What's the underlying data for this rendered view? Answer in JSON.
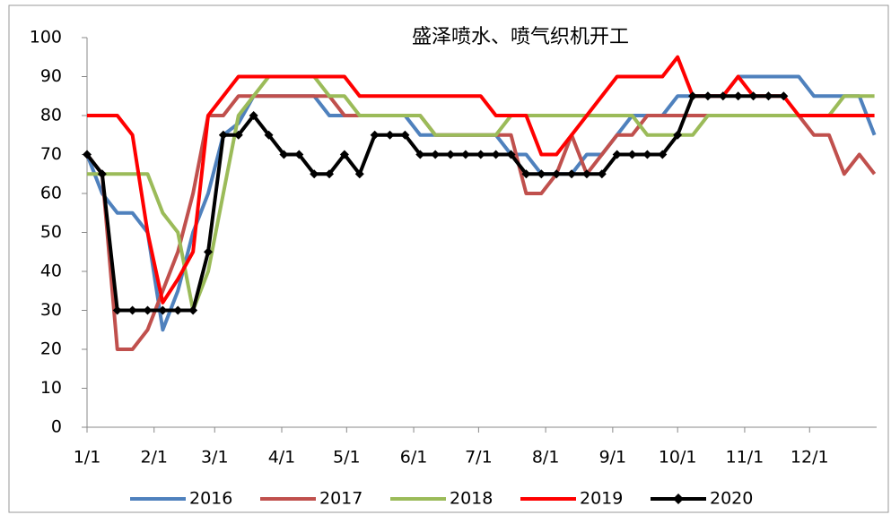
{
  "chart_data": {
    "type": "line",
    "title": "盛泽喷水、喷气织机开工",
    "x": [
      0,
      7,
      14,
      21,
      28,
      35,
      42,
      49,
      56,
      63,
      70,
      77,
      84,
      91,
      98,
      105,
      112,
      119,
      126,
      133,
      140,
      147,
      154,
      161,
      168,
      175,
      182,
      189,
      196,
      203,
      210,
      217,
      224,
      231,
      238,
      245,
      252,
      259,
      266,
      273,
      280,
      287,
      294,
      301,
      308,
      315,
      322,
      329,
      336,
      343,
      350,
      357,
      364
    ],
    "xlim": [
      0,
      365
    ],
    "xticks": [
      {
        "value": 0,
        "label": "1/1"
      },
      {
        "value": 31,
        "label": "2/1"
      },
      {
        "value": 59,
        "label": "3/1"
      },
      {
        "value": 90,
        "label": "4/1"
      },
      {
        "value": 120,
        "label": "5/1"
      },
      {
        "value": 151,
        "label": "6/1"
      },
      {
        "value": 181,
        "label": "7/1"
      },
      {
        "value": 212,
        "label": "8/1"
      },
      {
        "value": 243,
        "label": "9/1"
      },
      {
        "value": 273,
        "label": "10/1"
      },
      {
        "value": 304,
        "label": "11/1"
      },
      {
        "value": 334,
        "label": "12/1"
      }
    ],
    "ylim": [
      0,
      100
    ],
    "yticks": [
      0,
      10,
      20,
      30,
      40,
      50,
      60,
      70,
      80,
      90,
      100
    ],
    "grid": false,
    "legend": "bottom",
    "series": [
      {
        "name": "2016",
        "color": "#4f81bd",
        "values": [
          70,
          60,
          55,
          55,
          50,
          25,
          35,
          50,
          60,
          75,
          78,
          85,
          85,
          85,
          85,
          85,
          80,
          80,
          80,
          80,
          80,
          80,
          75,
          75,
          75,
          75,
          75,
          75,
          70,
          70,
          65,
          65,
          65,
          70,
          70,
          75,
          80,
          80,
          80,
          85,
          85,
          85,
          85,
          90,
          90,
          90,
          90,
          90,
          85,
          85,
          85,
          85,
          75
        ]
      },
      {
        "name": "2017",
        "color": "#c0504d",
        "values": [
          70,
          65,
          20,
          20,
          25,
          35,
          45,
          60,
          80,
          80,
          85,
          85,
          85,
          85,
          85,
          85,
          85,
          80,
          80,
          80,
          80,
          80,
          80,
          75,
          75,
          75,
          75,
          75,
          75,
          60,
          60,
          65,
          75,
          65,
          70,
          75,
          75,
          80,
          80,
          80,
          80,
          80,
          80,
          80,
          80,
          80,
          80,
          80,
          75,
          75,
          65,
          70,
          65
        ]
      },
      {
        "name": "2018",
        "color": "#9bbb59",
        "values": [
          65,
          65,
          65,
          65,
          65,
          55,
          50,
          30,
          40,
          60,
          80,
          85,
          90,
          90,
          90,
          90,
          85,
          85,
          80,
          80,
          80,
          80,
          80,
          75,
          75,
          75,
          75,
          75,
          80,
          80,
          80,
          80,
          80,
          80,
          80,
          80,
          80,
          75,
          75,
          75,
          75,
          80,
          80,
          80,
          80,
          80,
          80,
          80,
          80,
          80,
          85,
          85,
          85
        ]
      },
      {
        "name": "2019",
        "color": "#ff0000",
        "values": [
          80,
          80,
          80,
          75,
          50,
          32,
          38,
          45,
          80,
          85,
          90,
          90,
          90,
          90,
          90,
          90,
          90,
          90,
          85,
          85,
          85,
          85,
          85,
          85,
          85,
          85,
          85,
          80,
          80,
          80,
          70,
          70,
          75,
          80,
          85,
          90,
          90,
          90,
          90,
          95,
          85,
          85,
          85,
          90,
          85,
          85,
          85,
          80,
          80,
          80,
          80,
          80,
          80
        ]
      },
      {
        "name": "2020",
        "color": "#000000",
        "marker": "diamond",
        "values": [
          70,
          65,
          30,
          30,
          30,
          30,
          30,
          30,
          45,
          75,
          75,
          80,
          75,
          70,
          70,
          65,
          65,
          70,
          65,
          75,
          75,
          75,
          70,
          70,
          70,
          70,
          70,
          70,
          70,
          65,
          65,
          65,
          65,
          65,
          65,
          70,
          70,
          70,
          70,
          75,
          85,
          85,
          85,
          85,
          85,
          85,
          85,
          null,
          null,
          null,
          null,
          null,
          null
        ]
      }
    ]
  }
}
